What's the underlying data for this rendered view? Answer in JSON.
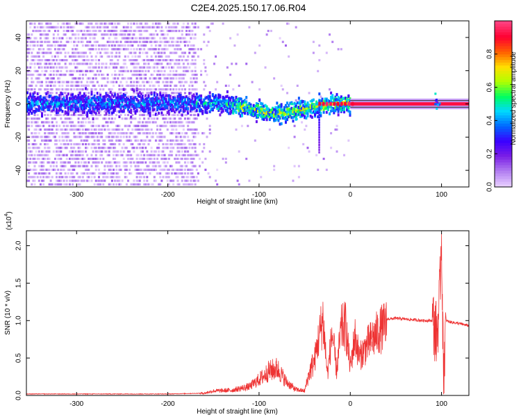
{
  "title": "C2E4.2025.150.17.06.R04",
  "chart_data": [
    {
      "type": "heatmap",
      "title": "C2E4.2025.150.17.06.R04",
      "xlabel": "Height of straight line (km)",
      "ylabel": "Frequency (Hz)",
      "xlim": [
        -355,
        130
      ],
      "ylim": [
        -50,
        50
      ],
      "xticks": [
        -300,
        -200,
        -100,
        0,
        100
      ],
      "xtick_labels": [
        "-300",
        "-200",
        "-100",
        "0",
        "100"
      ],
      "yticks": [
        -40,
        -20,
        0,
        20,
        40
      ],
      "ytick_labels": [
        "-40",
        "-20",
        "0",
        "20",
        "40"
      ],
      "colorbar": {
        "label": "Normalized spectral amplitude",
        "range": [
          0,
          1
        ],
        "ticks": [
          0.0,
          0.2,
          0.4,
          0.6,
          0.8
        ],
        "tick_labels": [
          "0.0",
          "0.2",
          "0.4",
          "0.6",
          "0.8"
        ],
        "colormap": [
          "#e6ccff",
          "#b07cf0",
          "#7a1ee6",
          "#3a00ff",
          "#0066ff",
          "#00d8ff",
          "#00ff60",
          "#b0ff00",
          "#ffe000",
          "#ff6000",
          "#ff0030",
          "#ff4080"
        ]
      },
      "features": {
        "noise_region_km": [
          -355,
          -170
        ],
        "main_band_center_hz": 0,
        "main_band_halfwidth_hz": 8,
        "tone_line_km": [
          0,
          130
        ],
        "tone_line_hz": 0,
        "tone_line_halfwidth_hz": 2,
        "dip_center_km": -80,
        "dip_depth_hz": -6,
        "spike_km": -35,
        "spike_hz": [
          -30,
          0
        ]
      },
      "grid": false
    },
    {
      "type": "line",
      "xlabel": "Height of straight line (km)",
      "ylabel": "SNR (10 * v/v)",
      "y_multiplier_label": "(x10",
      "y_multiplier_exp": "4",
      "xlim": [
        -355,
        130
      ],
      "ylim": [
        0,
        2.2
      ],
      "xticks": [
        -300,
        -200,
        -100,
        0,
        100
      ],
      "xtick_labels": [
        "-300",
        "-200",
        "-100",
        "0",
        "100"
      ],
      "yticks": [
        0.0,
        0.5,
        1.0,
        1.5,
        2.0
      ],
      "ytick_labels": [
        "0.0",
        "0.5",
        "1.0",
        "1.5",
        "2.0"
      ],
      "color": "#ee3333",
      "series": [
        {
          "x": [
            -355,
            -250,
            -200,
            -160,
            -150,
            -130,
            -110,
            -95,
            -90,
            -80,
            -70,
            -60,
            -50,
            -45,
            -40,
            -35,
            -30,
            -25,
            -20,
            -15,
            -10,
            -5,
            0,
            5,
            10,
            20,
            30,
            40,
            50,
            60,
            70,
            80,
            90,
            95,
            98,
            100,
            102,
            105,
            110,
            120,
            130
          ],
          "y": [
            0.02,
            0.02,
            0.02,
            0.03,
            0.06,
            0.07,
            0.12,
            0.26,
            0.32,
            0.36,
            0.18,
            0.08,
            0.06,
            0.3,
            0.45,
            0.8,
            1.1,
            0.3,
            0.9,
            0.35,
            0.95,
            1.0,
            0.4,
            0.85,
            0.55,
            0.75,
            0.9,
            1.02,
            1.03,
            1.02,
            1.01,
            1.0,
            1.0,
            0.8,
            1.3,
            2.2,
            0.3,
            1.0,
            0.98,
            0.96,
            0.93
          ]
        }
      ],
      "grid": false
    }
  ]
}
